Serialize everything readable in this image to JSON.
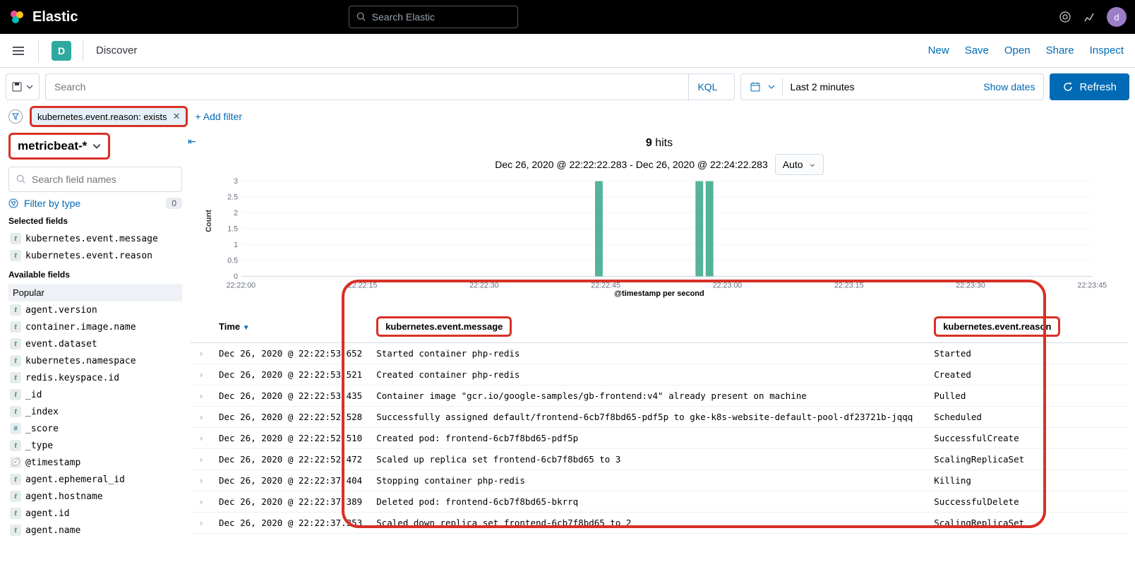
{
  "header": {
    "brand": "Elastic",
    "search_placeholder": "Search Elastic",
    "avatar_letter": "d"
  },
  "subheader": {
    "badge_letter": "D",
    "title": "Discover",
    "actions": {
      "new": "New",
      "save": "Save",
      "open": "Open",
      "share": "Share",
      "inspect": "Inspect"
    }
  },
  "querybar": {
    "search_placeholder": "Search",
    "kql": "KQL",
    "timerange": "Last 2 minutes",
    "show_dates": "Show dates",
    "refresh": "Refresh"
  },
  "filters": {
    "pill": "kubernetes.event.reason: exists",
    "add": "+ Add filter"
  },
  "sidebar": {
    "index_pattern": "metricbeat-*",
    "search_fields_placeholder": "Search field names",
    "filter_by_type": "Filter by type",
    "filter_count": "0",
    "selected_label": "Selected fields",
    "selected": [
      {
        "type": "t",
        "name": "kubernetes.event.message"
      },
      {
        "type": "t",
        "name": "kubernetes.event.reason"
      }
    ],
    "available_label": "Available fields",
    "popular_label": "Popular",
    "popular": [
      {
        "type": "t",
        "name": "agent.version"
      },
      {
        "type": "t",
        "name": "container.image.name"
      },
      {
        "type": "t",
        "name": "event.dataset"
      },
      {
        "type": "t",
        "name": "kubernetes.namespace"
      },
      {
        "type": "t",
        "name": "redis.keyspace.id"
      }
    ],
    "fields": [
      {
        "type": "t",
        "name": "_id"
      },
      {
        "type": "t",
        "name": "_index"
      },
      {
        "type": "hash",
        "name": "_score"
      },
      {
        "type": "t",
        "name": "_type"
      },
      {
        "type": "clock",
        "name": "@timestamp"
      },
      {
        "type": "t",
        "name": "agent.ephemeral_id"
      },
      {
        "type": "t",
        "name": "agent.hostname"
      },
      {
        "type": "t",
        "name": "agent.id"
      },
      {
        "type": "t",
        "name": "agent.name"
      }
    ]
  },
  "hits": {
    "count": "9",
    "label": "hits",
    "range": "Dec 26, 2020 @ 22:22:22.283 - Dec 26, 2020 @ 22:24:22.283",
    "interval": "Auto",
    "yaxis": "Count",
    "xaxis": "@timestamp per second",
    "chart": {
      "yticks": [
        "0",
        "0.5",
        "1",
        "1.5",
        "2",
        "2.5",
        "3"
      ],
      "xticks": [
        "22:22:00",
        "22:22:15",
        "22:22:30",
        "22:22:45",
        "22:23:00",
        "22:23:15",
        "22:23:30",
        "22:23:45"
      ],
      "bars": [
        {
          "xfrac": 0.416,
          "yval": 3,
          "w": 0.009
        },
        {
          "xfrac": 0.534,
          "yval": 3,
          "w": 0.009
        },
        {
          "xfrac": 0.546,
          "yval": 3,
          "w": 0.009
        }
      ],
      "ymax": 3,
      "bar_color": "#54b399",
      "grid_color": "#eeeeee"
    }
  },
  "table": {
    "columns": {
      "time": "Time",
      "msg": "kubernetes.event.message",
      "reason": "kubernetes.event.reason"
    },
    "rows": [
      {
        "t": "Dec 26, 2020 @ 22:22:53.652",
        "m": "Started container php-redis",
        "r": "Started"
      },
      {
        "t": "Dec 26, 2020 @ 22:22:53.521",
        "m": "Created container php-redis",
        "r": "Created"
      },
      {
        "t": "Dec 26, 2020 @ 22:22:53.435",
        "m": "Container image \"gcr.io/google-samples/gb-frontend:v4\" already present on machine",
        "r": "Pulled"
      },
      {
        "t": "Dec 26, 2020 @ 22:22:52.528",
        "m": "Successfully assigned default/frontend-6cb7f8bd65-pdf5p to gke-k8s-website-default-pool-df23721b-jqqq",
        "r": "Scheduled"
      },
      {
        "t": "Dec 26, 2020 @ 22:22:52.510",
        "m": "Created pod: frontend-6cb7f8bd65-pdf5p",
        "r": "SuccessfulCreate"
      },
      {
        "t": "Dec 26, 2020 @ 22:22:52.472",
        "m": "Scaled up replica set frontend-6cb7f8bd65 to 3",
        "r": "ScalingReplicaSet"
      },
      {
        "t": "Dec 26, 2020 @ 22:22:37.404",
        "m": "Stopping container php-redis",
        "r": "Killing"
      },
      {
        "t": "Dec 26, 2020 @ 22:22:37.389",
        "m": "Deleted pod: frontend-6cb7f8bd65-bkrrq",
        "r": "SuccessfulDelete"
      },
      {
        "t": "Dec 26, 2020 @ 22:22:37.353",
        "m": "Scaled down replica set frontend-6cb7f8bd65 to 2",
        "r": "ScalingReplicaSet"
      }
    ]
  }
}
